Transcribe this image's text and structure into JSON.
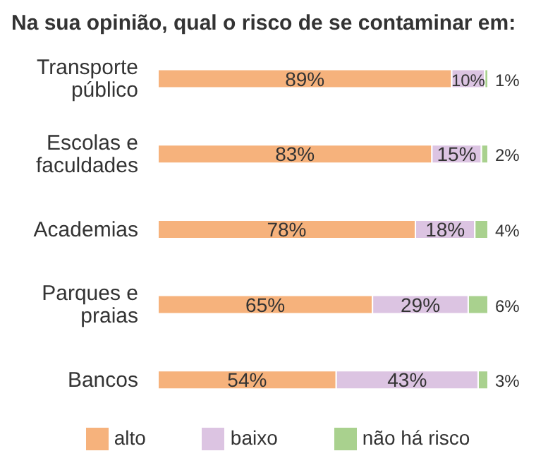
{
  "chart_data": {
    "type": "bar",
    "orientation": "horizontal",
    "stacked": true,
    "title": "Na sua opinião, qual o risco de se contaminar em:",
    "categories": [
      "Transporte público",
      "Escolas e faculdades",
      "Academias",
      "Parques e praias",
      "Bancos"
    ],
    "series": [
      {
        "name": "alto",
        "color": "#f6b27c",
        "values": [
          89,
          83,
          78,
          65,
          54
        ],
        "value_labels": [
          "89%",
          "83%",
          "78%",
          "65%",
          "54%"
        ]
      },
      {
        "name": "baixo",
        "color": "#dcc4e2",
        "values": [
          10,
          15,
          18,
          29,
          43
        ],
        "value_labels": [
          "10%",
          "15%",
          "18%",
          "29%",
          "43%"
        ]
      },
      {
        "name": "não há risco",
        "color": "#a9d18e",
        "values": [
          1,
          2,
          4,
          6,
          3
        ],
        "value_labels": [
          "1%",
          "2%",
          "4%",
          "6%",
          "3%"
        ]
      }
    ],
    "legend": "bottom",
    "grid": false
  }
}
